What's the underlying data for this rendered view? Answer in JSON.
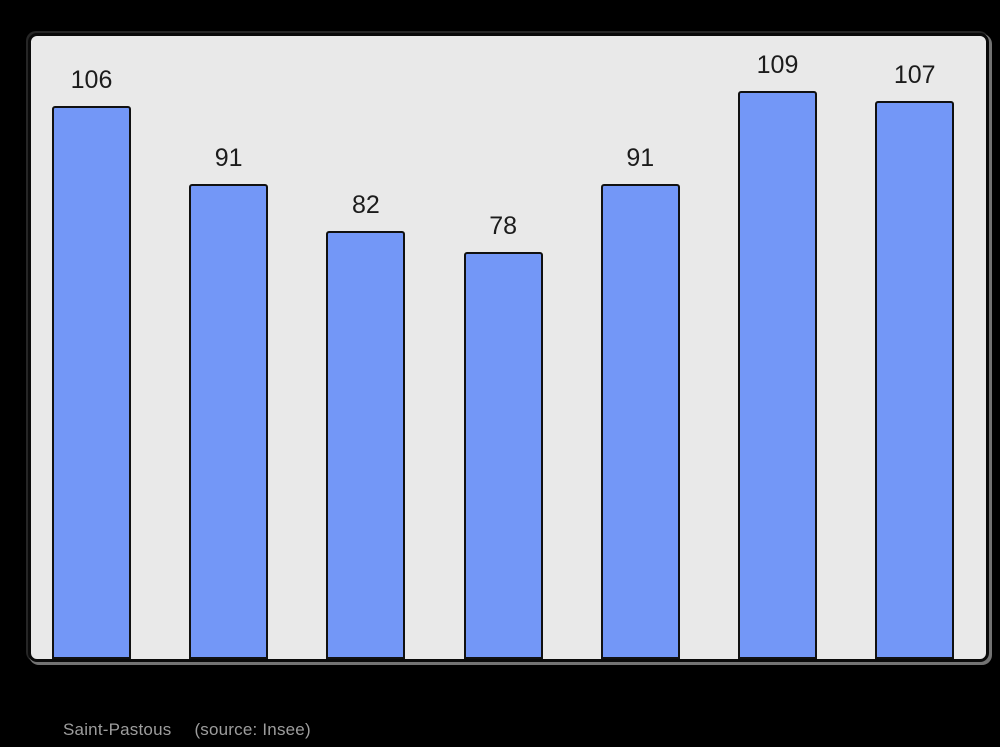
{
  "page": {
    "background": "#000000"
  },
  "caption": {
    "title": "Saint-Pastous",
    "source": "(source: Insee)"
  },
  "chart_data": {
    "type": "bar",
    "title": "Saint-Pastous",
    "subtitle": "(source: Insee)",
    "values": [
      106,
      91,
      82,
      78,
      91,
      109,
      107
    ],
    "data_labels": [
      "106",
      "91",
      "82",
      "78",
      "91",
      "109",
      "107"
    ],
    "categories": [
      "",
      "",
      "",
      "",
      "",
      "",
      ""
    ],
    "xlabel": "",
    "ylabel": "",
    "ylim": [
      0,
      120
    ],
    "grid": false,
    "legend": false,
    "colors": {
      "bar_fill": "#7397F7",
      "bar_border": "#111111",
      "plot_background": "#E9E9E9",
      "plot_border": "#0A0A0A",
      "value_label": "#1C1C1C",
      "caption_text": "#9D9D9D",
      "page_background": "#000000"
    }
  }
}
